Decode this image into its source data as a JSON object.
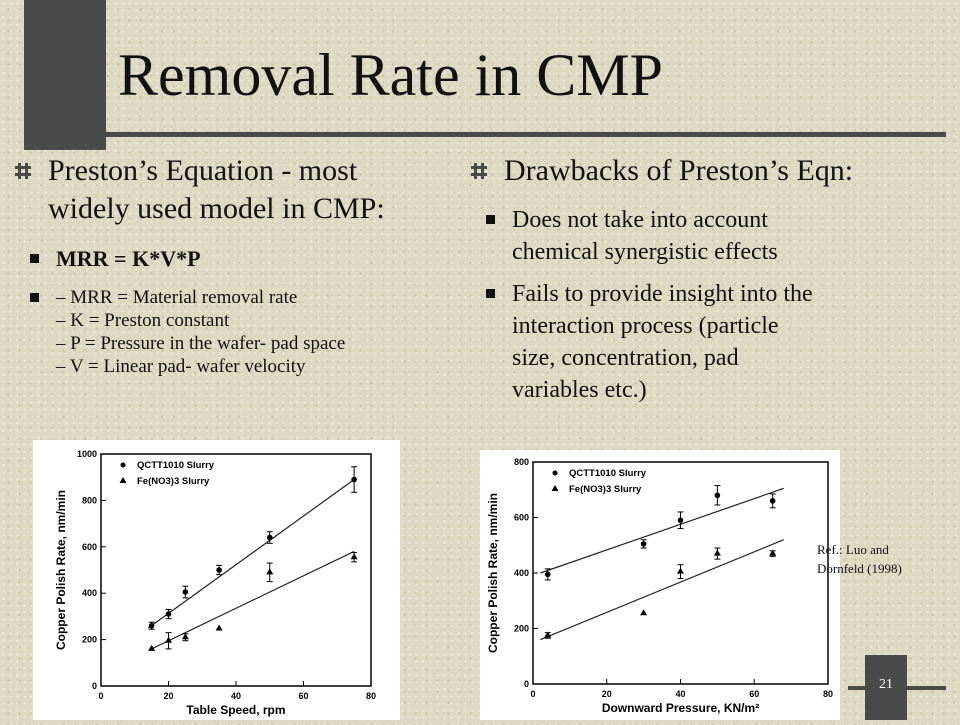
{
  "slide": {
    "title": "Removal Rate in CMP",
    "slide_number": "21",
    "ref_lines": [
      "Ref.: Luo and",
      "Dornfeld (1998)"
    ]
  },
  "left": {
    "heading_lines": [
      "Preston’s Equation - most",
      "widely used model in CMP:"
    ],
    "equation": "MRR = K*V*P",
    "definitions": [
      "– MRR = Material removal rate",
      "– K = Preston constant",
      "– P = Pressure in the wafer- pad space",
      "– V = Linear pad- wafer velocity"
    ]
  },
  "right": {
    "heading": "Drawbacks of Preston’s Eqn:",
    "bullet1_lines": [
      "Does not take into account",
      "chemical synergistic effects"
    ],
    "bullet2_lines": [
      "Fails to provide insight into the",
      "interaction process (particle",
      "size, concentration, pad",
      "variables etc.)"
    ]
  },
  "chart_data": [
    {
      "type": "scatter",
      "xlabel": "Table Speed, rpm",
      "ylabel": "Copper Polish Rate, nm/min",
      "xlim": [
        0,
        80
      ],
      "ylim": [
        0,
        1000
      ],
      "xticks": [
        0,
        20,
        40,
        60,
        80
      ],
      "yticks": [
        0,
        200,
        400,
        600,
        800,
        1000
      ],
      "legend_position": "top-left",
      "series": [
        {
          "name": "QCTT1010 Slurry",
          "marker": "circle",
          "points": [
            [
              15,
              260
            ],
            [
              20,
              310
            ],
            [
              25,
              405
            ],
            [
              35,
              500
            ],
            [
              50,
              640
            ],
            [
              75,
              890
            ]
          ],
          "errors": [
            15,
            20,
            25,
            20,
            25,
            55
          ],
          "fit_line": [
            [
              14,
              250
            ],
            [
              75,
              890
            ]
          ]
        },
        {
          "name": "Fe(NO3)3 Slurry",
          "marker": "triangle",
          "points": [
            [
              15,
              160
            ],
            [
              20,
              195
            ],
            [
              25,
              210
            ],
            [
              35,
              248
            ],
            [
              50,
              490
            ],
            [
              75,
              555
            ]
          ],
          "errors": [
            0,
            35,
            15,
            0,
            40,
            20
          ],
          "fit_line": [
            [
              15,
              160
            ],
            [
              75,
              580
            ]
          ]
        }
      ]
    },
    {
      "type": "scatter",
      "xlabel": "Downward Pressure, KN/m²",
      "ylabel": "Copper Polish Rate, nm/min",
      "xlim": [
        0,
        80
      ],
      "ylim": [
        0,
        800
      ],
      "xticks": [
        0,
        20,
        40,
        60,
        80
      ],
      "yticks": [
        0,
        200,
        400,
        600,
        800
      ],
      "legend_position": "top-left",
      "series": [
        {
          "name": "QCTT1010 Slurry",
          "marker": "circle",
          "points": [
            [
              4,
              395
            ],
            [
              30,
              505
            ],
            [
              40,
              590
            ],
            [
              50,
              680
            ],
            [
              65,
              660
            ]
          ],
          "errors": [
            20,
            15,
            30,
            35,
            25
          ],
          "fit_line": [
            [
              2,
              400
            ],
            [
              68,
              705
            ]
          ]
        },
        {
          "name": "Fe(NO3)3 Slurry",
          "marker": "triangle",
          "points": [
            [
              4,
              175
            ],
            [
              30,
              255
            ],
            [
              40,
              405
            ],
            [
              50,
              470
            ],
            [
              65,
              470
            ]
          ],
          "errors": [
            10,
            0,
            25,
            20,
            10
          ],
          "fit_line": [
            [
              2,
              160
            ],
            [
              68,
              520
            ]
          ]
        }
      ]
    }
  ]
}
